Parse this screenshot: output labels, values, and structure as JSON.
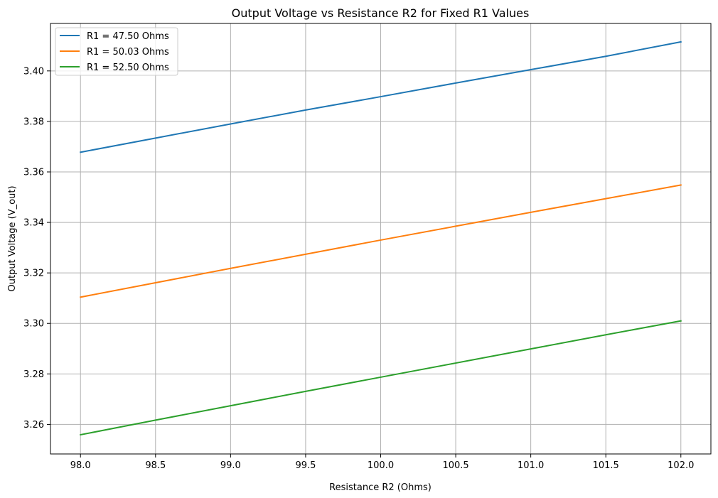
{
  "chart_data": {
    "type": "line",
    "title": "Output Voltage vs Resistance R2 for Fixed R1 Values",
    "xlabel": "Resistance R2 (Ohms)",
    "ylabel": "Output Voltage (V_out)",
    "xlim": [
      97.8,
      102.2
    ],
    "ylim": [
      3.2483,
      3.4188
    ],
    "grid": true,
    "legend_position": "top-left",
    "x_ticks": [
      98.0,
      98.5,
      99.0,
      99.5,
      100.0,
      100.5,
      101.0,
      101.5,
      102.0
    ],
    "x_tick_labels": [
      "98.0",
      "98.5",
      "99.0",
      "99.5",
      "100.0",
      "100.5",
      "101.0",
      "101.5",
      "102.0"
    ],
    "y_ticks": [
      3.26,
      3.28,
      3.3,
      3.32,
      3.34,
      3.36,
      3.38,
      3.4
    ],
    "y_tick_labels": [
      "3.26",
      "3.28",
      "3.30",
      "3.32",
      "3.34",
      "3.36",
      "3.38",
      "3.40"
    ],
    "x": [
      98.0,
      98.5,
      99.0,
      99.5,
      100.0,
      100.5,
      101.0,
      101.5,
      102.0
    ],
    "series": [
      {
        "name": "R1 = 47.50 Ohms",
        "color": "#1f77b4",
        "values": [
          3.3678,
          3.3734,
          3.379,
          3.3845,
          3.3898,
          3.3952,
          3.4005,
          3.4058,
          3.4115
        ]
      },
      {
        "name": "R1 = 50.03 Ohms",
        "color": "#ff7f0e",
        "values": [
          3.3104,
          3.3161,
          3.3218,
          3.3274,
          3.333,
          3.3385,
          3.344,
          3.3494,
          3.3548
        ]
      },
      {
        "name": "R1 = 52.50 Ohms",
        "color": "#2ca02c",
        "values": [
          3.2559,
          3.2617,
          3.2674,
          3.2731,
          3.2787,
          3.2843,
          3.2899,
          3.2955,
          3.301
        ]
      }
    ]
  }
}
